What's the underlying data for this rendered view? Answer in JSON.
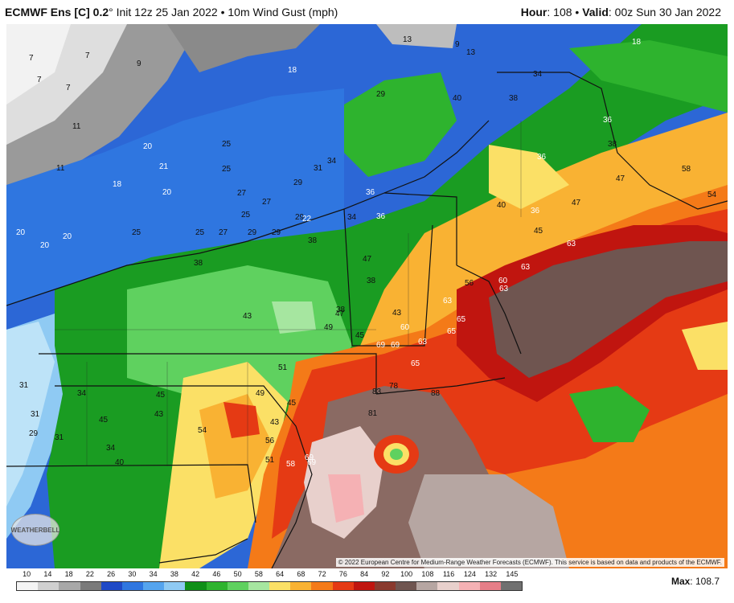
{
  "header": {
    "title_bold": "ECMWF Ens [C] 0.2",
    "title_rest": "° Init 12z 25 Jan 2022 • 10m Wind Gust (mph)",
    "hour_label": "Hour",
    "hour_value": ": 108 •",
    "valid_label": "Valid",
    "valid_value": ": 00z Sun 30 Jan 2022"
  },
  "credit": "© 2022 European Centre for Medium-Range Weather Forecasts (ECMWF). This service is based on data and products of the ECMWF.",
  "logo_text": "WEATHERBELL",
  "legend": {
    "ticks": [
      "10",
      "14",
      "18",
      "22",
      "26",
      "30",
      "34",
      "38",
      "42",
      "46",
      "50",
      "58",
      "64",
      "68",
      "72",
      "76",
      "84",
      "92",
      "100",
      "108",
      "116",
      "124",
      "132",
      "145"
    ],
    "colors": [
      "#f4f4f4",
      "#d0d0d0",
      "#a8a8a8",
      "#7a7a7a",
      "#1f49c6",
      "#2f76e0",
      "#55a4ee",
      "#8fcaf3",
      "#0f8f17",
      "#2eb32e",
      "#5fd15f",
      "#a6e6a0",
      "#fbe066",
      "#f9b233",
      "#f47a18",
      "#e53a14",
      "#c0150f",
      "#8a3a2e",
      "#6f5550",
      "#b6a6a2",
      "#e8d0cc",
      "#f5b1b4",
      "#e67e88",
      "#707070"
    ]
  },
  "max": {
    "label": "Max",
    "value": ": 108.7"
  },
  "map_values": [
    {
      "t": "7",
      "c": "k"
    },
    {
      "t": "7",
      "c": "k"
    },
    {
      "t": "9",
      "c": "k"
    },
    {
      "t": "7",
      "c": "k"
    },
    {
      "t": "7",
      "c": "k"
    },
    {
      "t": "11",
      "c": "k"
    },
    {
      "t": "11",
      "c": "k"
    },
    {
      "t": "13",
      "c": "k"
    },
    {
      "t": "9",
      "c": "k"
    },
    {
      "t": "13",
      "c": "k"
    },
    {
      "t": "18",
      "c": "w"
    },
    {
      "t": "18",
      "c": "w"
    },
    {
      "t": "20",
      "c": "w"
    },
    {
      "t": "21",
      "c": "w"
    },
    {
      "t": "20",
      "c": "w"
    },
    {
      "t": "18",
      "c": "w"
    },
    {
      "t": "20",
      "c": "w"
    },
    {
      "t": "20",
      "c": "w"
    },
    {
      "t": "20",
      "c": "w"
    },
    {
      "t": "25",
      "c": "k"
    },
    {
      "t": "25",
      "c": "k"
    },
    {
      "t": "29",
      "c": "k"
    },
    {
      "t": "27",
      "c": "k"
    },
    {
      "t": "27",
      "c": "k"
    },
    {
      "t": "29",
      "c": "k"
    },
    {
      "t": "31",
      "c": "k"
    },
    {
      "t": "34",
      "c": "k"
    },
    {
      "t": "25",
      "c": "k"
    },
    {
      "t": "25",
      "c": "k"
    },
    {
      "t": "25",
      "c": "k"
    },
    {
      "t": "27",
      "c": "k"
    },
    {
      "t": "29",
      "c": "k"
    },
    {
      "t": "29",
      "c": "k"
    },
    {
      "t": "29",
      "c": "k"
    },
    {
      "t": "22",
      "c": "w"
    },
    {
      "t": "34",
      "c": "k"
    },
    {
      "t": "36",
      "c": "w"
    },
    {
      "t": "36",
      "c": "w"
    },
    {
      "t": "38",
      "c": "k"
    },
    {
      "t": "40",
      "c": "k"
    },
    {
      "t": "38",
      "c": "k"
    },
    {
      "t": "34",
      "c": "k"
    },
    {
      "t": "36",
      "c": "w"
    },
    {
      "t": "38",
      "c": "k"
    },
    {
      "t": "36",
      "c": "w"
    },
    {
      "t": "40",
      "c": "k"
    },
    {
      "t": "36",
      "c": "w"
    },
    {
      "t": "47",
      "c": "k"
    },
    {
      "t": "45",
      "c": "k"
    },
    {
      "t": "47",
      "c": "k"
    },
    {
      "t": "63",
      "c": "w"
    },
    {
      "t": "63",
      "c": "w"
    },
    {
      "t": "60",
      "c": "w"
    },
    {
      "t": "63",
      "c": "w"
    },
    {
      "t": "58",
      "c": "k"
    },
    {
      "t": "54",
      "c": "k"
    },
    {
      "t": "38",
      "c": "k"
    },
    {
      "t": "43",
      "c": "k"
    },
    {
      "t": "47",
      "c": "k"
    },
    {
      "t": "38",
      "c": "k"
    },
    {
      "t": "43",
      "c": "k"
    },
    {
      "t": "47",
      "c": "k"
    },
    {
      "t": "49",
      "c": "k"
    },
    {
      "t": "45",
      "c": "k"
    },
    {
      "t": "56",
      "c": "k"
    },
    {
      "t": "63",
      "c": "w"
    },
    {
      "t": "65",
      "c": "w"
    },
    {
      "t": "60",
      "c": "w"
    },
    {
      "t": "63",
      "c": "w"
    },
    {
      "t": "65",
      "c": "w"
    },
    {
      "t": "69",
      "c": "w"
    },
    {
      "t": "69",
      "c": "w"
    },
    {
      "t": "65",
      "c": "w"
    },
    {
      "t": "78",
      "c": "k"
    },
    {
      "t": "88",
      "c": "k"
    },
    {
      "t": "83",
      "c": "k"
    },
    {
      "t": "81",
      "c": "k"
    },
    {
      "t": "69",
      "c": "w"
    },
    {
      "t": "58",
      "c": "w"
    },
    {
      "t": "69",
      "c": "w"
    },
    {
      "t": "51",
      "c": "k"
    },
    {
      "t": "49",
      "c": "k"
    },
    {
      "t": "45",
      "c": "k"
    },
    {
      "t": "43",
      "c": "k"
    },
    {
      "t": "38",
      "c": "k"
    },
    {
      "t": "31",
      "c": "k"
    },
    {
      "t": "34",
      "c": "k"
    },
    {
      "t": "31",
      "c": "k"
    },
    {
      "t": "29",
      "c": "k"
    },
    {
      "t": "31",
      "c": "k"
    },
    {
      "t": "45",
      "c": "k"
    },
    {
      "t": "43",
      "c": "k"
    },
    {
      "t": "45",
      "c": "k"
    },
    {
      "t": "34",
      "c": "k"
    },
    {
      "t": "40",
      "c": "k"
    },
    {
      "t": "54",
      "c": "k"
    },
    {
      "t": "56",
      "c": "k"
    },
    {
      "t": "51",
      "c": "k"
    }
  ]
}
